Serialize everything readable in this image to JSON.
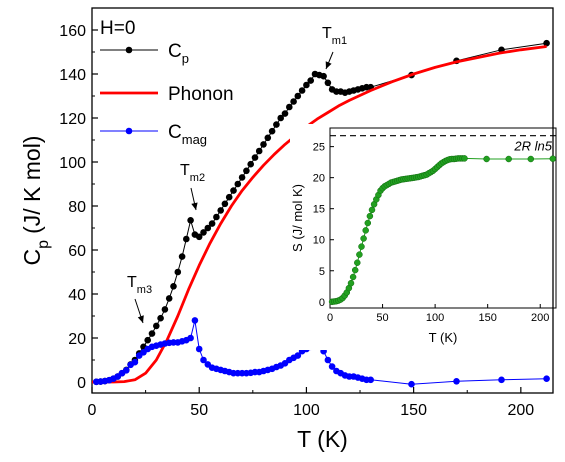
{
  "chart_data": [
    {
      "type": "line",
      "annotation_main": "H=0",
      "xlabel": "T (K)",
      "ylabel_main": "C",
      "ylabel_sub": "p",
      "ylabel_rest": "(J/ K mol)",
      "xlim": [
        0,
        215
      ],
      "ylim": [
        -5,
        170
      ],
      "xticks": [
        0,
        50,
        100,
        150,
        200
      ],
      "yticks": [
        0,
        20,
        40,
        60,
        80,
        100,
        120,
        140,
        160
      ],
      "legend_position": "top-left",
      "legend": [
        {
          "name_main": "C",
          "name_sub": "p",
          "color": "#000000",
          "marker": true
        },
        {
          "name_main": "Phonon",
          "name_sub": "",
          "color": "#ff0000",
          "marker": false
        },
        {
          "name_main": "C",
          "name_sub": "mag",
          "color": "#0000ff",
          "marker": true
        }
      ],
      "annotations": [
        {
          "main": "T",
          "sub": "m1",
          "x": 106,
          "y": 139
        },
        {
          "main": "T",
          "sub": "m2",
          "x": 48,
          "y": 74
        },
        {
          "main": "T",
          "sub": "m3",
          "x": 25,
          "y": 17
        }
      ],
      "series": [
        {
          "key": "cp",
          "color": "#000000",
          "x": [
            2,
            4,
            6,
            8,
            10,
            12,
            14,
            16,
            18,
            20,
            22,
            24,
            26,
            28,
            30,
            32,
            34,
            36,
            38,
            40,
            42,
            44,
            46,
            48,
            50,
            52,
            54,
            56,
            58,
            60,
            62,
            64,
            66,
            68,
            70,
            72,
            74,
            76,
            78,
            80,
            82,
            84,
            86,
            88,
            90,
            92,
            94,
            96,
            98,
            100,
            102,
            104,
            106,
            108,
            110,
            112,
            114,
            116,
            118,
            120,
            122,
            124,
            126,
            128,
            130,
            149,
            170,
            191,
            212
          ],
          "y": [
            0.1,
            0.2,
            0.4,
            0.8,
            1.5,
            2.5,
            4,
            5.5,
            8,
            10,
            13,
            16,
            19,
            22,
            25.5,
            29,
            33,
            38,
            43.5,
            50,
            57,
            65,
            73.5,
            67,
            66,
            68,
            70,
            72,
            75,
            78,
            81,
            84,
            87,
            90,
            93,
            96,
            99,
            102,
            105,
            108,
            111,
            114,
            117,
            120,
            122,
            125,
            127.5,
            130,
            132.5,
            135,
            137,
            140,
            139.5,
            139,
            136,
            133,
            132,
            132,
            131.5,
            132,
            132.5,
            133,
            133.5,
            134,
            134,
            139.5,
            146,
            151,
            154
          ]
        },
        {
          "key": "phonon",
          "color": "#ff0000",
          "x": [
            0,
            10,
            15,
            20,
            25,
            30,
            35,
            40,
            45,
            50,
            55,
            60,
            65,
            70,
            75,
            80,
            85,
            90,
            95,
            100,
            105,
            110,
            115,
            120,
            130,
            140,
            150,
            160,
            170,
            180,
            190,
            200,
            212
          ],
          "y": [
            0,
            0,
            0.2,
            1,
            4,
            10,
            19,
            30,
            42,
            53,
            63,
            72,
            80,
            87,
            93,
            98.5,
            103.5,
            108,
            112,
            116,
            119.5,
            122.5,
            125.5,
            128,
            132.5,
            136.5,
            140,
            143,
            145.5,
            147.5,
            149.5,
            151,
            152.5
          ]
        },
        {
          "key": "cmag",
          "color": "#0000ff",
          "x": [
            2,
            4,
            6,
            8,
            10,
            12,
            14,
            16,
            18,
            20,
            22,
            24,
            26,
            28,
            30,
            32,
            34,
            36,
            38,
            40,
            42,
            44,
            46,
            48,
            50,
            52,
            54,
            56,
            58,
            60,
            62,
            64,
            66,
            68,
            70,
            72,
            74,
            76,
            78,
            80,
            82,
            84,
            86,
            88,
            90,
            92,
            94,
            96,
            98,
            100,
            102,
            104,
            106,
            108,
            110,
            112,
            114,
            116,
            118,
            120,
            122,
            124,
            126,
            128,
            130,
            149,
            170,
            191,
            212
          ],
          "y": [
            0.1,
            0.2,
            0.4,
            0.8,
            1.5,
            2.5,
            4,
            5.3,
            7.8,
            9,
            12,
            13.5,
            15,
            16,
            16.5,
            17,
            17.5,
            17.8,
            18,
            18,
            18.5,
            19,
            20,
            28,
            15,
            10,
            8,
            6.5,
            6,
            5.5,
            5,
            4.5,
            4,
            4,
            4,
            4,
            4.2,
            4.5,
            4.5,
            5,
            5.5,
            6,
            6.8,
            7.5,
            8.5,
            10,
            11,
            12,
            14,
            15,
            16,
            16.5,
            16.5,
            14,
            10,
            7,
            5,
            4,
            3,
            2.5,
            2.5,
            2,
            1.5,
            1,
            1,
            -1,
            0.3,
            1,
            1.5
          ]
        }
      ]
    },
    {
      "type": "line",
      "xlabel": "T (K)",
      "ylabel": "S (J/ mol K)",
      "xlim": [
        0,
        215
      ],
      "ylim": [
        -1,
        28
      ],
      "xticks": [
        0,
        50,
        100,
        150,
        200
      ],
      "yticks": [
        0,
        5,
        10,
        15,
        20,
        25
      ],
      "reference_line": {
        "y": 26.76,
        "label": "2R ln5",
        "style": "dashed"
      },
      "series": [
        {
          "key": "entropy",
          "color": "#22a020",
          "x": [
            2,
            4,
            6,
            8,
            10,
            12,
            14,
            16,
            18,
            20,
            22,
            24,
            26,
            28,
            30,
            32,
            34,
            36,
            38,
            40,
            42,
            44,
            46,
            48,
            50,
            52,
            54,
            56,
            58,
            60,
            62,
            64,
            66,
            68,
            70,
            72,
            74,
            76,
            78,
            80,
            82,
            84,
            86,
            88,
            90,
            92,
            94,
            96,
            98,
            100,
            102,
            104,
            106,
            108,
            110,
            112,
            114,
            116,
            118,
            120,
            122,
            124,
            126,
            128,
            149,
            170,
            191,
            212
          ],
          "y": [
            0,
            0.05,
            0.1,
            0.2,
            0.35,
            0.6,
            1.0,
            1.5,
            2.2,
            3.0,
            4.0,
            5.1,
            6.3,
            7.6,
            8.9,
            10.2,
            11.5,
            12.7,
            13.8,
            14.8,
            15.7,
            16.5,
            17.2,
            17.9,
            18.3,
            18.6,
            18.8,
            19.0,
            19.2,
            19.3,
            19.4,
            19.5,
            19.6,
            19.7,
            19.75,
            19.8,
            19.85,
            19.9,
            19.95,
            20.0,
            20.05,
            20.1,
            20.2,
            20.3,
            20.4,
            20.5,
            20.7,
            20.9,
            21.1,
            21.4,
            21.7,
            22.0,
            22.3,
            22.5,
            22.7,
            22.85,
            22.95,
            23.0,
            23.0,
            23.05,
            23.1,
            23.1,
            23.1,
            23.1,
            23.0,
            23.0,
            23.0,
            23.05
          ]
        }
      ]
    }
  ]
}
